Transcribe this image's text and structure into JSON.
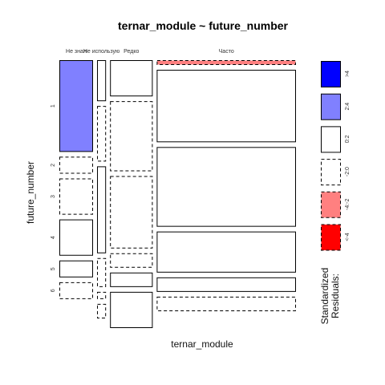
{
  "chart_data": {
    "type": "mosaic",
    "title": "ternar_module ~ future_number",
    "xlabel": "ternar_module",
    "ylabel": "future_number",
    "columns": [
      "Не знал",
      "Не использую",
      "Редко",
      "Часто"
    ],
    "rows": [
      "1",
      "2",
      "3",
      "4",
      "5",
      "6"
    ],
    "column_shares": [
      0.15,
      0.19,
      0.38,
      1.0
    ],
    "cells": [
      {
        "col": 0,
        "row": 0,
        "share": 0.38,
        "residual_class": "2:4"
      },
      {
        "col": 0,
        "row": 1,
        "share": 0.07,
        "residual_class": "-2:0"
      },
      {
        "col": 0,
        "row": 2,
        "share": 0.15,
        "residual_class": "-2:0"
      },
      {
        "col": 0,
        "row": 3,
        "share": 0.15,
        "residual_class": "0:2"
      },
      {
        "col": 0,
        "row": 4,
        "share": 0.07,
        "residual_class": "0:2"
      },
      {
        "col": 0,
        "row": 5,
        "share": 0.07,
        "residual_class": "-2:0"
      },
      {
        "col": 1,
        "row": 0,
        "share": 0.17,
        "residual_class": "0:2"
      },
      {
        "col": 1,
        "row": 1,
        "share": 0.23,
        "residual_class": "-2:0"
      },
      {
        "col": 1,
        "row": 2,
        "share": 0.36,
        "residual_class": "0:2"
      },
      {
        "col": 1,
        "row": 3,
        "share": 0.12,
        "residual_class": "-2:0"
      },
      {
        "col": 1,
        "row": 4,
        "share": 0.03,
        "residual_class": "-2:0"
      },
      {
        "col": 1,
        "row": 5,
        "share": 0.06,
        "residual_class": "-2:0"
      },
      {
        "col": 2,
        "row": 0,
        "share": 0.15,
        "residual_class": "0:2"
      },
      {
        "col": 2,
        "row": 1,
        "share": 0.29,
        "residual_class": "-2:0"
      },
      {
        "col": 2,
        "row": 2,
        "share": 0.3,
        "residual_class": "-2:0"
      },
      {
        "col": 2,
        "row": 3,
        "share": 0.06,
        "residual_class": "-2:0"
      },
      {
        "col": 2,
        "row": 4,
        "share": 0.06,
        "residual_class": "0:2"
      },
      {
        "col": 2,
        "row": 5,
        "share": 0.15,
        "residual_class": "0:2"
      },
      {
        "col": 3,
        "row": 0,
        "share": 0.02,
        "residual_class": "-4:-2"
      },
      {
        "col": 3,
        "row": 1,
        "share": 0.3,
        "residual_class": "0:2"
      },
      {
        "col": 3,
        "row": 2,
        "share": 0.33,
        "residual_class": "0:2"
      },
      {
        "col": 3,
        "row": 3,
        "share": 0.17,
        "residual_class": "0:2"
      },
      {
        "col": 3,
        "row": 4,
        "share": 0.06,
        "residual_class": "0:2"
      },
      {
        "col": 3,
        "row": 5,
        "share": 0.06,
        "residual_class": "-2:0"
      }
    ],
    "legend": {
      "title_line1": "Standardized",
      "title_line2": "Residuals:",
      "entries": [
        {
          "label": ">4",
          "fill": "#0000ff",
          "dashed": false
        },
        {
          "label": "2:4",
          "fill": "#8080ff",
          "dashed": false
        },
        {
          "label": "0:2",
          "fill": "#ffffff",
          "dashed": false
        },
        {
          "label": "-2:0",
          "fill": "#ffffff",
          "dashed": true
        },
        {
          "label": "-4:-2",
          "fill": "#ff8080",
          "dashed": true
        },
        {
          "label": "<-4",
          "fill": "#ff0000",
          "dashed": true
        }
      ]
    }
  }
}
